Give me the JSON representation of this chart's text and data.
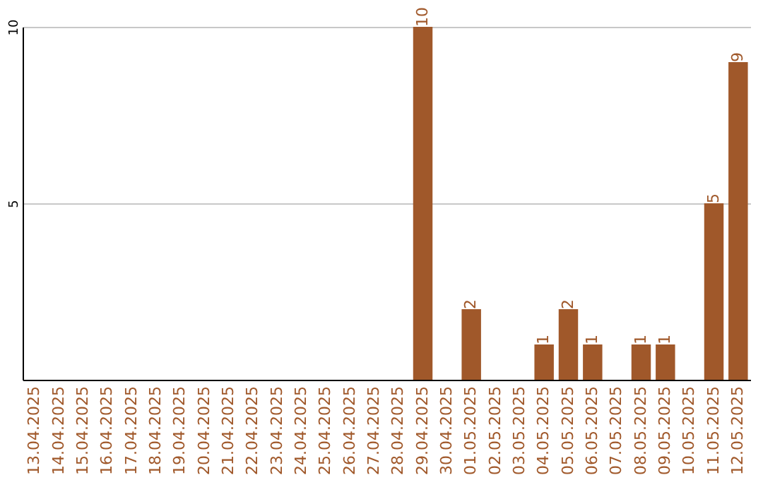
{
  "chart_data": {
    "type": "bar",
    "categories": [
      "13.04.2025",
      "14.04.2025",
      "15.04.2025",
      "16.04.2025",
      "17.04.2025",
      "18.04.2025",
      "19.04.2025",
      "20.04.2025",
      "21.04.2025",
      "22.04.2025",
      "23.04.2025",
      "24.04.2025",
      "25.04.2025",
      "26.04.2025",
      "27.04.2025",
      "28.04.2025",
      "29.04.2025",
      "30.04.2025",
      "01.05.2025",
      "02.05.2025",
      "03.05.2025",
      "04.05.2025",
      "05.05.2025",
      "06.05.2025",
      "07.05.2025",
      "08.05.2025",
      "09.05.2025",
      "10.05.2025",
      "11.05.2025",
      "12.05.2025"
    ],
    "values": [
      0,
      0,
      0,
      0,
      0,
      0,
      0,
      0,
      0,
      0,
      0,
      0,
      0,
      0,
      0,
      0,
      10,
      0,
      2,
      0,
      0,
      1,
      2,
      1,
      0,
      1,
      1,
      0,
      5,
      9
    ],
    "value_labels": [
      null,
      null,
      null,
      null,
      null,
      null,
      null,
      null,
      null,
      null,
      null,
      null,
      null,
      null,
      null,
      null,
      "10",
      null,
      "2",
      null,
      null,
      "1",
      "2",
      "1",
      null,
      "1",
      "1",
      null,
      "5",
      "9"
    ],
    "color": "#a0582a",
    "ylim": [
      0,
      10
    ],
    "yticks": [
      5,
      10
    ],
    "grid": "y"
  }
}
